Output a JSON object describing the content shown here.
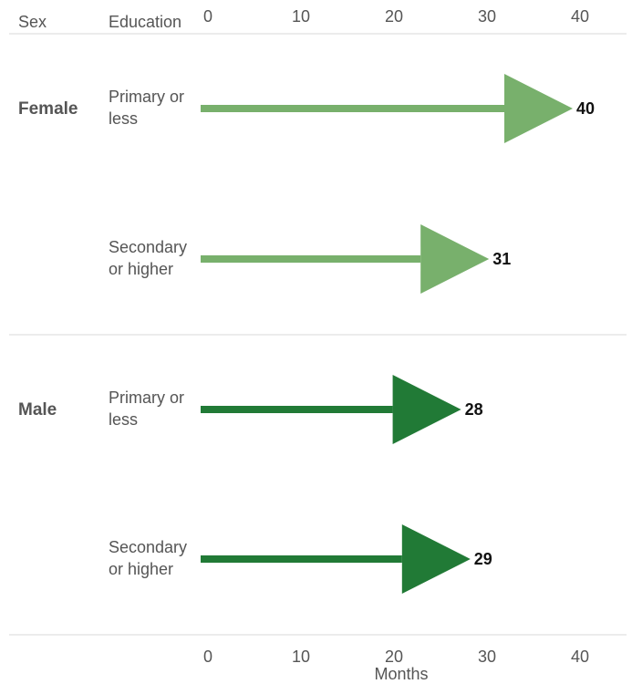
{
  "chart_data": {
    "type": "bar",
    "headers": {
      "sex": "Sex",
      "education": "Education"
    },
    "x_ticks": [
      0,
      10,
      20,
      30,
      40
    ],
    "xlim": [
      0,
      45
    ],
    "xlabel": "Months",
    "groups": [
      {
        "label": "Female",
        "color": "#78b06c",
        "rows": [
          {
            "education": [
              "Primary or",
              "less"
            ],
            "value": 40
          },
          {
            "education": [
              "Secondary",
              "or higher"
            ],
            "value": 31
          }
        ]
      },
      {
        "label": "Male",
        "color": "#217a36",
        "rows": [
          {
            "education": [
              "Primary or",
              "less"
            ],
            "value": 28
          },
          {
            "education": [
              "Secondary",
              "or higher"
            ],
            "value": 29
          }
        ]
      }
    ]
  }
}
